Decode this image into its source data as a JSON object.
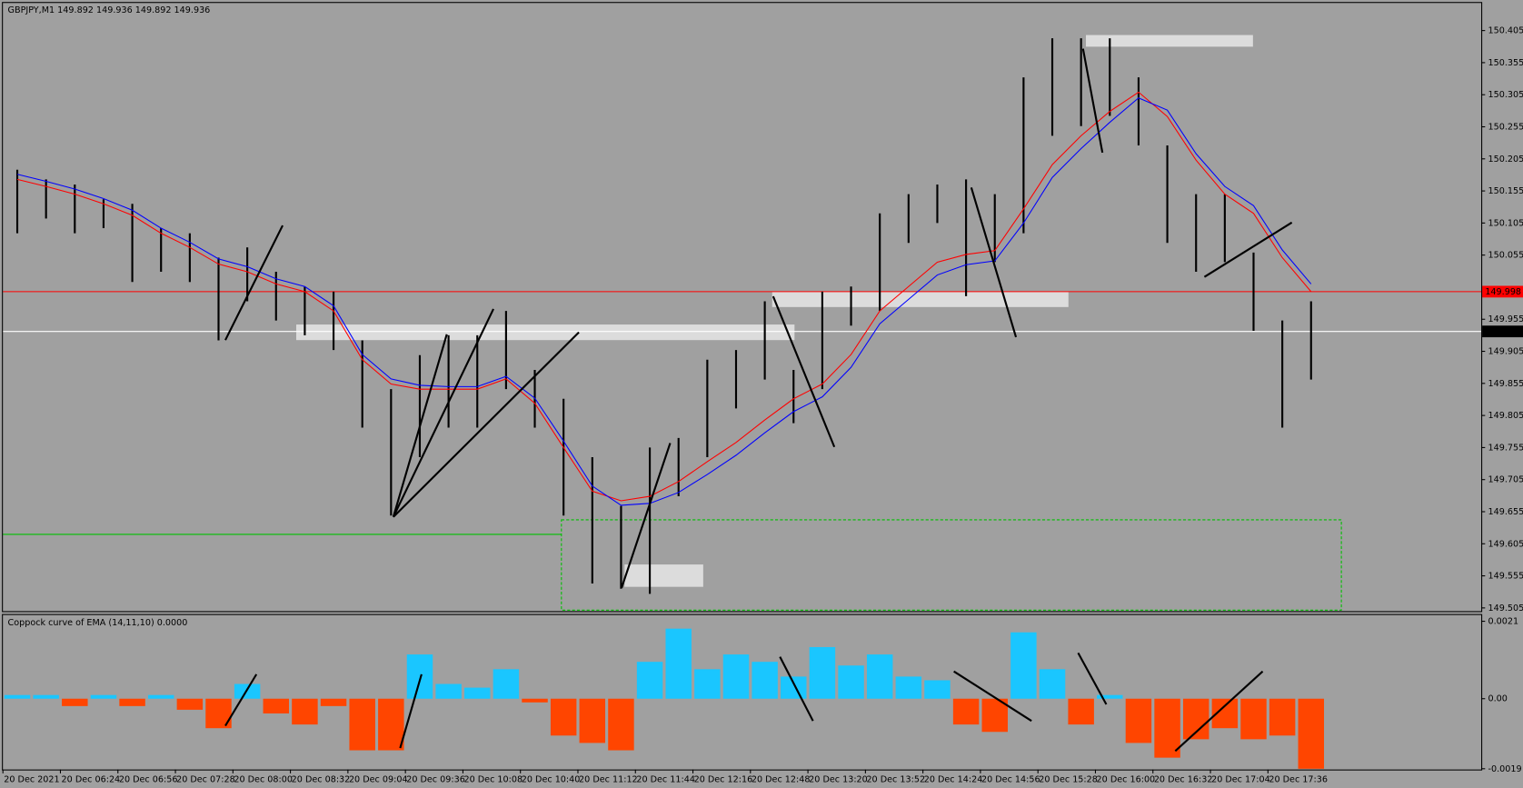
{
  "chart_data": [
    {
      "type": "hilo",
      "title": "GBPJPY,M1  149.892 149.936 149.892 149.936",
      "categories": [
        "20 Dec 2021",
        null,
        "20 Dec 06:24",
        null,
        "20 Dec 06:56",
        null,
        "20 Dec 07:28",
        null,
        "20 Dec 08:00",
        null,
        "20 Dec 08:32",
        null,
        "20 Dec 09:04",
        null,
        "20 Dec 09:36",
        null,
        "20 Dec 10:08",
        null,
        "20 Dec 10:40",
        null,
        "20 Dec 11:12",
        null,
        "20 Dec 11:44",
        null,
        "20 Dec 12:16",
        null,
        "20 Dec 12:48",
        null,
        "20 Dec 13:20",
        null,
        "20 Dec 13:52",
        null,
        "20 Dec 14:24",
        null,
        "20 Dec 14:56",
        null,
        "20 Dec 15:28",
        null,
        "20 Dec 16:00",
        null,
        "20 Dec 16:32",
        null,
        "20 Dec 17:04",
        null,
        "20 Dec 17:36",
        null
      ],
      "high": [
        150.188,
        150.173,
        150.165,
        150.142,
        150.135,
        150.097,
        150.089,
        150.051,
        150.067,
        150.029,
        150.006,
        149.998,
        149.922,
        149.846,
        149.899,
        149.93,
        149.93,
        149.968,
        149.876,
        149.831,
        149.74,
        149.664,
        149.755,
        149.77,
        149.892,
        149.907,
        149.983,
        149.876,
        149.998,
        150.006,
        150.12,
        150.15,
        150.165,
        150.173,
        150.15,
        150.332,
        150.393,
        150.393,
        150.393,
        150.332,
        150.226,
        150.15,
        150.15,
        150.059,
        149.953,
        149.983
      ],
      "low": [
        150.089,
        150.112,
        150.089,
        150.097,
        150.013,
        150.029,
        150.013,
        149.922,
        149.983,
        149.953,
        149.93,
        149.907,
        149.786,
        149.649,
        149.74,
        149.786,
        149.786,
        149.846,
        149.786,
        149.649,
        149.543,
        149.535,
        149.527,
        149.679,
        149.74,
        149.816,
        149.861,
        149.793,
        149.846,
        149.945,
        149.968,
        150.074,
        150.105,
        149.991,
        150.044,
        150.089,
        150.241,
        150.256,
        150.272,
        150.226,
        150.074,
        150.029,
        150.044,
        149.937,
        149.786,
        149.861
      ],
      "bar_color": "#000000",
      "series": [
        {
          "color": "#ff0000",
          "values": [
            150.173,
            150.162,
            150.15,
            150.135,
            150.117,
            150.089,
            150.067,
            150.041,
            150.029,
            150.01,
            149.998,
            149.968,
            149.892,
            149.854,
            149.846,
            149.846,
            149.846,
            149.862,
            149.824,
            149.755,
            149.687,
            149.672,
            149.679,
            149.702,
            149.733,
            149.763,
            149.798,
            149.831,
            149.854,
            149.9,
            149.968,
            150.006,
            150.044,
            150.056,
            150.062,
            150.127,
            150.196,
            150.241,
            150.279,
            150.309,
            150.271,
            150.203,
            150.15,
            150.12,
            150.051,
            149.998
          ]
        },
        {
          "color": "#0000ff",
          "values": [
            150.181,
            150.17,
            150.158,
            150.143,
            150.125,
            150.097,
            150.075,
            150.049,
            150.037,
            150.018,
            150.006,
            149.976,
            149.9,
            149.862,
            149.852,
            149.85,
            149.85,
            149.866,
            149.832,
            149.765,
            149.695,
            149.665,
            149.668,
            149.685,
            149.713,
            149.743,
            149.778,
            149.811,
            149.834,
            149.88,
            149.948,
            149.986,
            150.024,
            150.04,
            150.046,
            150.105,
            150.176,
            150.221,
            150.262,
            150.3,
            150.281,
            150.213,
            150.162,
            150.132,
            150.063,
            150.01
          ]
        }
      ],
      "hlines": [
        {
          "value": 149.998,
          "color": "#ff0000"
        },
        {
          "value": 149.936,
          "color": "#ffffff"
        }
      ],
      "ylim": [
        149.5,
        150.448
      ],
      "yticks": [
        150.405,
        150.355,
        150.305,
        150.255,
        150.205,
        150.155,
        150.105,
        150.055,
        149.955,
        149.905,
        149.855,
        149.805,
        149.755,
        149.705,
        149.655,
        149.605,
        149.555,
        149.505
      ]
    },
    {
      "type": "oscillator",
      "title": "Coppock curve of EMA  (14,11,10) 0.0000",
      "values": [
        0.0001,
        0.0001,
        -0.0002,
        0.0001,
        -0.0002,
        0.0001,
        -0.0003,
        -0.0008,
        0.0004,
        -0.0004,
        -0.0007,
        -0.0002,
        -0.0014,
        -0.0014,
        0.0012,
        0.0004,
        0.0003,
        0.0008,
        -0.0001,
        -0.001,
        -0.0012,
        -0.0014,
        0.001,
        0.0019,
        0.0008,
        0.0012,
        0.001,
        0.0006,
        0.0014,
        0.0009,
        0.0012,
        0.0006,
        0.0005,
        -0.0007,
        -0.0009,
        0.0018,
        0.0008,
        -0.0007,
        0.0001,
        -0.0012,
        -0.0016,
        -0.0011,
        -0.0008,
        -0.0011,
        -0.001,
        -0.0019
      ],
      "up_color": "#1ac6ff",
      "down_color": "#ff4500",
      "ylim": [
        -0.00192,
        0.00227
      ],
      "yticks": [
        0.0021,
        {
          "value": 0,
          "label": "0.00"
        },
        -0.0019
      ]
    }
  ]
}
